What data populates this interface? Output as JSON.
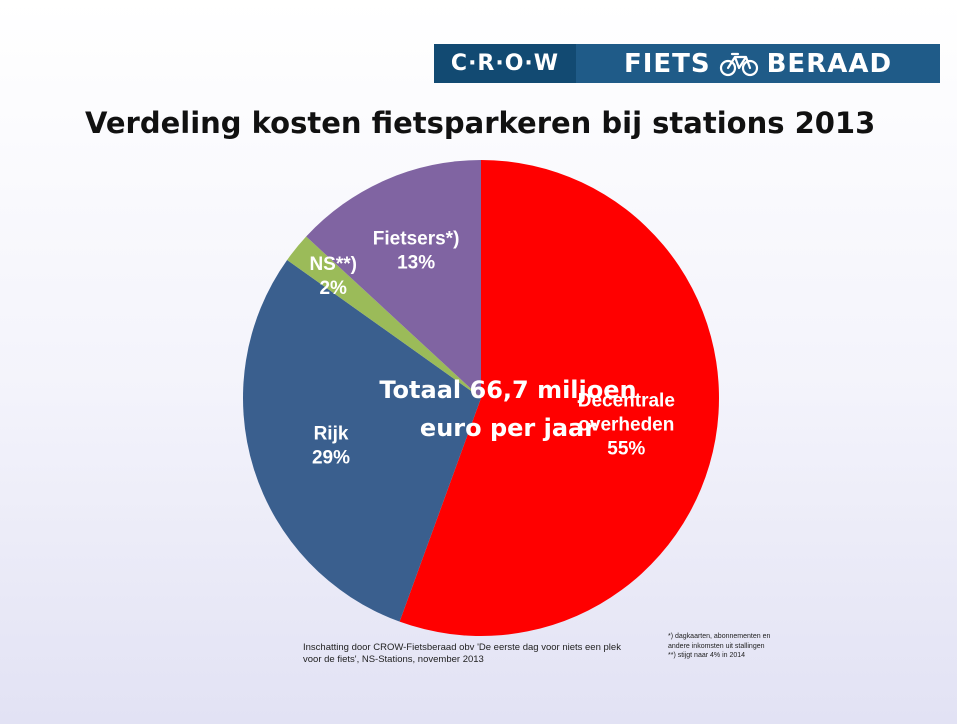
{
  "logo": {
    "crow": "C·R·O·W",
    "left_word": "FIETS",
    "right_word": "BERAAD",
    "bike_icon": "bicycle-icon"
  },
  "title": "Verdeling kosten fietsparkeren bij stations 2013",
  "chart_data": {
    "type": "pie",
    "title": "Verdeling kosten fietsparkeren bij stations 2013",
    "center_label": [
      "Totaal 66,7 miljoen",
      "euro  per jaar"
    ],
    "slices": [
      {
        "name": "Decentrale overheden",
        "label_lines": [
          "Decentrale",
          "overheden",
          "55%"
        ],
        "value": 55,
        "color": "#ff0000"
      },
      {
        "name": "Rijk",
        "label_lines": [
          "Rijk",
          "29%"
        ],
        "value": 29,
        "color": "#3a5f8e"
      },
      {
        "name": "NS**)",
        "label_lines": [
          "NS**)",
          "2%"
        ],
        "value": 2,
        "color": "#9bbb59"
      },
      {
        "name": "Fietsers*)",
        "label_lines": [
          "Fietsers*)",
          "13%"
        ],
        "value": 13,
        "color": "#8064a2"
      }
    ]
  },
  "footnotes": {
    "source": "Inschatting door CROW-Fietsberaad obv 'De eerste dag voor niets een plek voor de fiets', NS-Stations, november 2013",
    "notes": [
      "*) dagkaarten, abonnementen en",
      "andere inkomsten uit stallingen",
      "**) stijgt naar 4% in 2014"
    ]
  }
}
